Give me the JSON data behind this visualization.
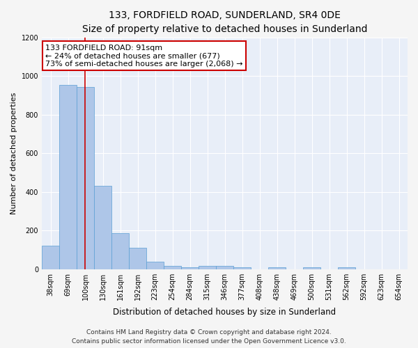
{
  "title": "133, FORDFIELD ROAD, SUNDERLAND, SR4 0DE",
  "subtitle": "Size of property relative to detached houses in Sunderland",
  "xlabel": "Distribution of detached houses by size in Sunderland",
  "ylabel": "Number of detached properties",
  "footer_line1": "Contains HM Land Registry data © Crown copyright and database right 2024.",
  "footer_line2": "Contains public sector information licensed under the Open Government Licence v3.0.",
  "categories": [
    "38sqm",
    "69sqm",
    "100sqm",
    "130sqm",
    "161sqm",
    "192sqm",
    "223sqm",
    "254sqm",
    "284sqm",
    "315sqm",
    "346sqm",
    "377sqm",
    "408sqm",
    "438sqm",
    "469sqm",
    "500sqm",
    "531sqm",
    "562sqm",
    "592sqm",
    "623sqm",
    "654sqm"
  ],
  "values": [
    120,
    955,
    945,
    430,
    185,
    110,
    40,
    17,
    10,
    15,
    15,
    8,
    0,
    8,
    0,
    8,
    0,
    10,
    0,
    0,
    0
  ],
  "bar_color": "#aec6e8",
  "bar_edge_color": "#5a9fd4",
  "annotation_line1": "133 FORDFIELD ROAD: 91sqm",
  "annotation_line2": "← 24% of detached houses are smaller (677)",
  "annotation_line3": "73% of semi-detached houses are larger (2,068) →",
  "annotation_box_color": "#ffffff",
  "annotation_box_edge_color": "#cc0000",
  "vline_color": "#cc0000",
  "vline_x": 1.97,
  "ylim": [
    0,
    1200
  ],
  "yticks": [
    0,
    200,
    400,
    600,
    800,
    1000,
    1200
  ],
  "plot_bg_color": "#e8eef8",
  "fig_bg_color": "#f5f5f5",
  "grid_color": "#ffffff",
  "title_fontsize": 10,
  "subtitle_fontsize": 9,
  "axis_label_fontsize": 8.5,
  "ylabel_fontsize": 8,
  "tick_fontsize": 7,
  "footer_fontsize": 6.5,
  "annot_fontsize": 8
}
